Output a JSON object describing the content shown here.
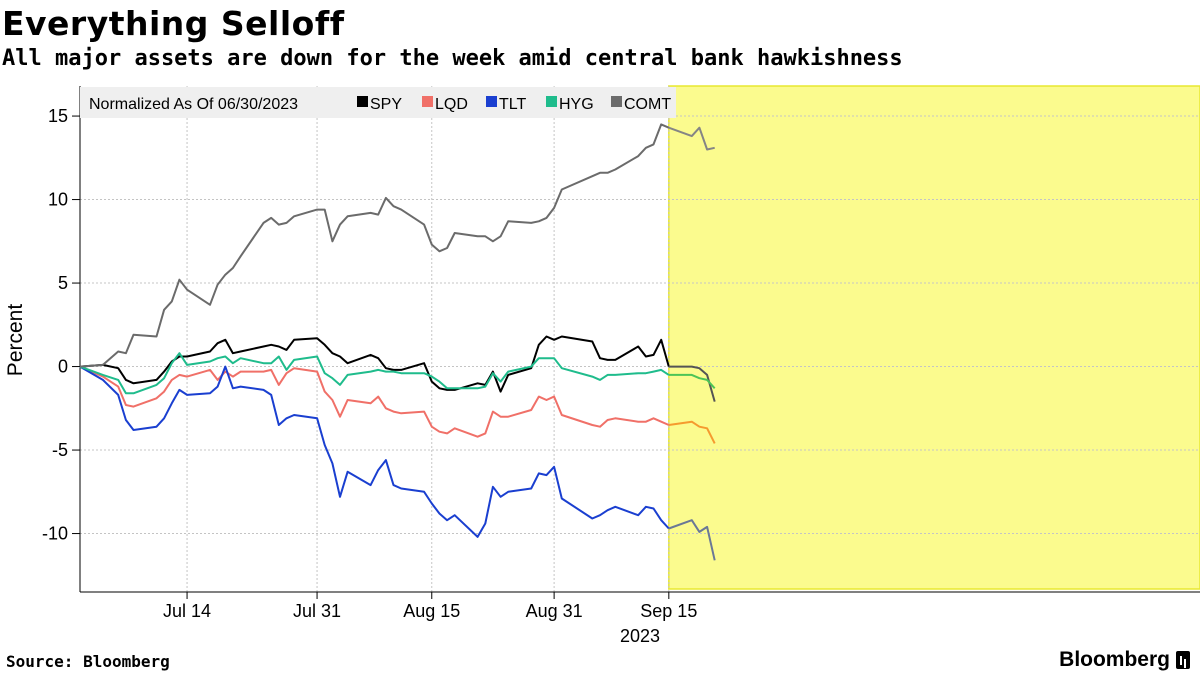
{
  "header": {
    "title": "Everything Selloff",
    "subtitle": "All major assets are down for the week amid central bank hawkishness"
  },
  "footer": {
    "source": "Source: Bloomberg",
    "brand": "Bloomberg"
  },
  "colors": {
    "SPY": "#000000",
    "LQD": "#f07068",
    "TLT": "#1a3fd0",
    "HYG": "#1fbc8c",
    "COMT": "#6b6b6b",
    "highlight": "#fbfb8e",
    "highlight_border": "#e8e830",
    "highlight_SPY": "#545454",
    "highlight_LQD": "#f59a2e",
    "highlight_TLT": "#6a7896",
    "highlight_HYG": "#4cc456",
    "highlight_COMT": "#858585"
  },
  "chart_data": {
    "type": "line",
    "ylabel": "Percent",
    "xlabel": "2023",
    "legend_title": "Normalized As Of 06/30/2023",
    "legend_position": "top-left",
    "grid": true,
    "ylim": [
      -13.5,
      16.8
    ],
    "yticks": [
      15,
      10,
      5,
      0,
      -5,
      -10
    ],
    "ytick_labels": [
      "15",
      "10",
      "5",
      "0",
      "-5",
      "-10"
    ],
    "xticks": [
      {
        "date": "2023-07-14",
        "label": "Jul 14"
      },
      {
        "date": "2023-07-31",
        "label": "Jul 31"
      },
      {
        "date": "2023-08-15",
        "label": "Aug 15"
      },
      {
        "date": "2023-08-31",
        "label": "Aug 31"
      },
      {
        "date": "2023-09-15",
        "label": "Sep 15"
      }
    ],
    "highlight_start": "2023-09-15",
    "x": [
      "2023-06-30",
      "2023-07-03",
      "2023-07-05",
      "2023-07-06",
      "2023-07-07",
      "2023-07-10",
      "2023-07-11",
      "2023-07-12",
      "2023-07-13",
      "2023-07-14",
      "2023-07-17",
      "2023-07-18",
      "2023-07-19",
      "2023-07-20",
      "2023-07-21",
      "2023-07-24",
      "2023-07-25",
      "2023-07-26",
      "2023-07-27",
      "2023-07-28",
      "2023-07-31",
      "2023-08-01",
      "2023-08-02",
      "2023-08-03",
      "2023-08-04",
      "2023-08-07",
      "2023-08-08",
      "2023-08-09",
      "2023-08-10",
      "2023-08-11",
      "2023-08-14",
      "2023-08-15",
      "2023-08-16",
      "2023-08-17",
      "2023-08-18",
      "2023-08-21",
      "2023-08-22",
      "2023-08-23",
      "2023-08-24",
      "2023-08-25",
      "2023-08-28",
      "2023-08-29",
      "2023-08-30",
      "2023-08-31",
      "2023-09-01",
      "2023-09-05",
      "2023-09-06",
      "2023-09-07",
      "2023-09-08",
      "2023-09-11",
      "2023-09-12",
      "2023-09-13",
      "2023-09-14",
      "2023-09-15",
      "2023-09-18",
      "2023-09-19",
      "2023-09-20",
      "2023-09-21"
    ],
    "series": [
      {
        "name": "SPY",
        "values": [
          0,
          0.1,
          -0.1,
          -0.8,
          -1.0,
          -0.8,
          -0.3,
          0.3,
          0.6,
          0.6,
          0.9,
          1.4,
          1.6,
          0.8,
          0.9,
          1.2,
          1.3,
          1.2,
          1.0,
          1.6,
          1.7,
          1.3,
          0.8,
          0.6,
          0.2,
          0.7,
          0.5,
          -0.1,
          -0.2,
          -0.2,
          0.2,
          -0.9,
          -1.3,
          -1.4,
          -1.4,
          -1.0,
          -1.1,
          -0.3,
          -1.5,
          -0.5,
          -0.1,
          1.3,
          1.8,
          1.6,
          1.8,
          1.5,
          0.5,
          0.4,
          0.4,
          1.2,
          0.6,
          0.7,
          1.6,
          0.0,
          0.0,
          -0.1,
          -0.5,
          -2.1
        ]
      },
      {
        "name": "LQD",
        "values": [
          0,
          -0.6,
          -1.2,
          -2.3,
          -2.4,
          -1.9,
          -1.5,
          -0.8,
          -0.5,
          -0.6,
          -0.2,
          -0.8,
          -0.3,
          -0.6,
          -0.3,
          -0.3,
          -0.2,
          -1.1,
          -0.4,
          -0.1,
          -0.3,
          -1.5,
          -2.0,
          -3.0,
          -2.0,
          -2.2,
          -1.8,
          -2.5,
          -2.7,
          -2.8,
          -2.7,
          -3.6,
          -3.9,
          -4.0,
          -3.7,
          -4.2,
          -4.0,
          -2.7,
          -3.0,
          -3.0,
          -2.6,
          -1.8,
          -2.0,
          -1.8,
          -2.9,
          -3.5,
          -3.6,
          -3.2,
          -3.1,
          -3.3,
          -3.3,
          -3.1,
          -3.3,
          -3.5,
          -3.3,
          -3.6,
          -3.7,
          -4.6
        ]
      },
      {
        "name": "TLT",
        "values": [
          0,
          -0.8,
          -1.7,
          -3.2,
          -3.8,
          -3.6,
          -3.1,
          -2.2,
          -1.4,
          -1.7,
          -1.6,
          -1.2,
          0.0,
          -1.3,
          -1.2,
          -1.4,
          -1.7,
          -3.5,
          -3.1,
          -2.9,
          -3.1,
          -4.7,
          -5.8,
          -7.8,
          -6.3,
          -7.1,
          -6.2,
          -5.6,
          -7.1,
          -7.3,
          -7.5,
          -8.2,
          -8.8,
          -9.2,
          -8.9,
          -10.2,
          -9.4,
          -7.2,
          -7.8,
          -7.5,
          -7.3,
          -6.4,
          -6.5,
          -6.0,
          -7.9,
          -9.1,
          -8.9,
          -8.6,
          -8.4,
          -8.9,
          -8.4,
          -8.5,
          -9.2,
          -9.7,
          -9.2,
          -9.9,
          -9.6,
          -11.6
        ]
      },
      {
        "name": "HYG",
        "values": [
          0,
          -0.5,
          -0.8,
          -1.6,
          -1.6,
          -1.1,
          -0.7,
          0.2,
          0.8,
          0.1,
          0.3,
          0.5,
          0.6,
          0.2,
          0.5,
          0.2,
          0.2,
          0.6,
          -0.2,
          0.4,
          0.6,
          -0.4,
          -0.7,
          -1.1,
          -0.5,
          -0.3,
          -0.2,
          -0.3,
          -0.3,
          -0.4,
          -0.4,
          -0.6,
          -0.9,
          -1.3,
          -1.3,
          -1.3,
          -1.2,
          -0.4,
          -0.9,
          -0.3,
          0.0,
          0.5,
          0.5,
          0.5,
          -0.1,
          -0.6,
          -0.8,
          -0.5,
          -0.5,
          -0.4,
          -0.4,
          -0.3,
          -0.2,
          -0.5,
          -0.5,
          -0.7,
          -0.8,
          -1.3
        ]
      },
      {
        "name": "COMT",
        "values": [
          0,
          0.1,
          0.9,
          0.8,
          1.9,
          1.8,
          3.4,
          3.9,
          5.2,
          4.6,
          3.7,
          4.9,
          5.5,
          5.9,
          6.6,
          8.6,
          8.9,
          8.5,
          8.6,
          9.0,
          9.4,
          9.4,
          7.5,
          8.5,
          9.0,
          9.2,
          9.1,
          10.1,
          9.6,
          9.4,
          8.5,
          7.3,
          6.9,
          7.1,
          8.0,
          7.8,
          7.8,
          7.5,
          7.8,
          8.7,
          8.6,
          8.7,
          8.9,
          9.5,
          10.6,
          11.4,
          11.6,
          11.6,
          11.8,
          12.6,
          13.1,
          13.3,
          14.5,
          14.3,
          13.8,
          14.3,
          13.0,
          13.1
        ]
      }
    ]
  }
}
